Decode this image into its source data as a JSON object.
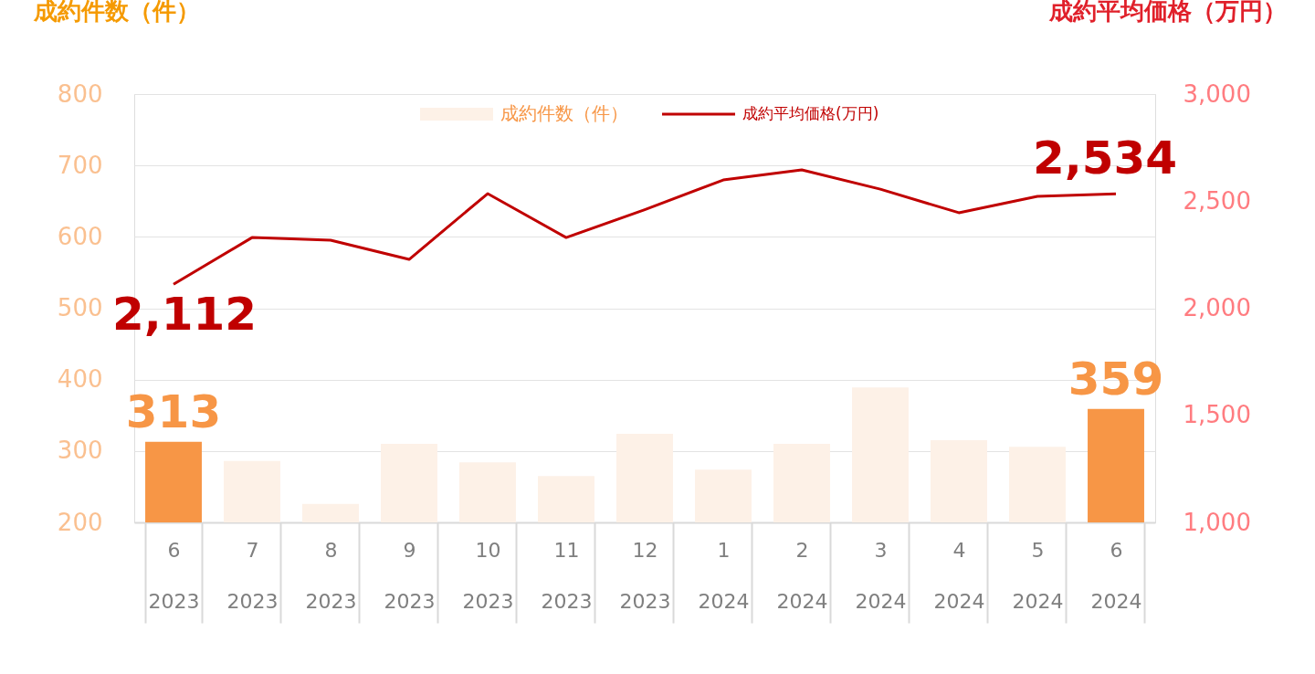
{
  "chart_data": {
    "type": "bar",
    "ylabel": "成約件数（件）",
    "y2label": "成約平均価格（万円）",
    "categories": [
      "6\n2023",
      "7\n2023",
      "8\n2023",
      "9\n2023",
      "10\n2023",
      "11\n2023",
      "12\n2023",
      "1\n2024",
      "2\n2024",
      "3\n2024",
      "4\n2024",
      "5\n2024",
      "6\n2024"
    ],
    "series": [
      {
        "name": "成約件数（件）",
        "color": "#fdf1e7",
        "colors": [
          "#f79646",
          "#fdf1e7",
          "#fdf1e7",
          "#fdf1e7",
          "#fdf1e7",
          "#fdf1e7",
          "#fdf1e7",
          "#fdf1e7",
          "#fdf1e7",
          "#fdf1e7",
          "#fdf1e7",
          "#fdf1e7",
          "#f79646"
        ],
        "values": [
          313,
          286,
          226,
          310,
          284,
          265,
          324,
          274,
          310,
          389,
          315,
          306,
          359
        ],
        "value_labels": [
          "313",
          null,
          null,
          null,
          null,
          null,
          null,
          null,
          null,
          null,
          null,
          null,
          "359"
        ]
      },
      {
        "name": "成約平均価格(万円)",
        "type": "line",
        "axis": "y2",
        "color": "#c00000",
        "values": [
          2112,
          2330,
          2318,
          2228,
          2535,
          2330,
          2460,
          2599,
          2646,
          2556,
          2446,
          2522,
          2534
        ],
        "value_labels": [
          "2,112",
          null,
          null,
          null,
          null,
          null,
          null,
          null,
          null,
          null,
          null,
          null,
          "2,534"
        ]
      }
    ],
    "ylim": [
      200,
      800
    ],
    "yticks": [
      200,
      300,
      400,
      500,
      600,
      700,
      800
    ],
    "y2lim": [
      1000,
      3000
    ],
    "y2ticks": [
      {
        "value": 1000,
        "label": "1,000"
      },
      {
        "value": 1500,
        "label": "1,500"
      },
      {
        "value": 2000,
        "label": "2,000"
      },
      {
        "value": 2500,
        "label": "2,500"
      },
      {
        "value": 3000,
        "label": "3,000"
      }
    ],
    "grid": "y",
    "legend": "top",
    "marker": "none",
    "line_style": "solid"
  }
}
